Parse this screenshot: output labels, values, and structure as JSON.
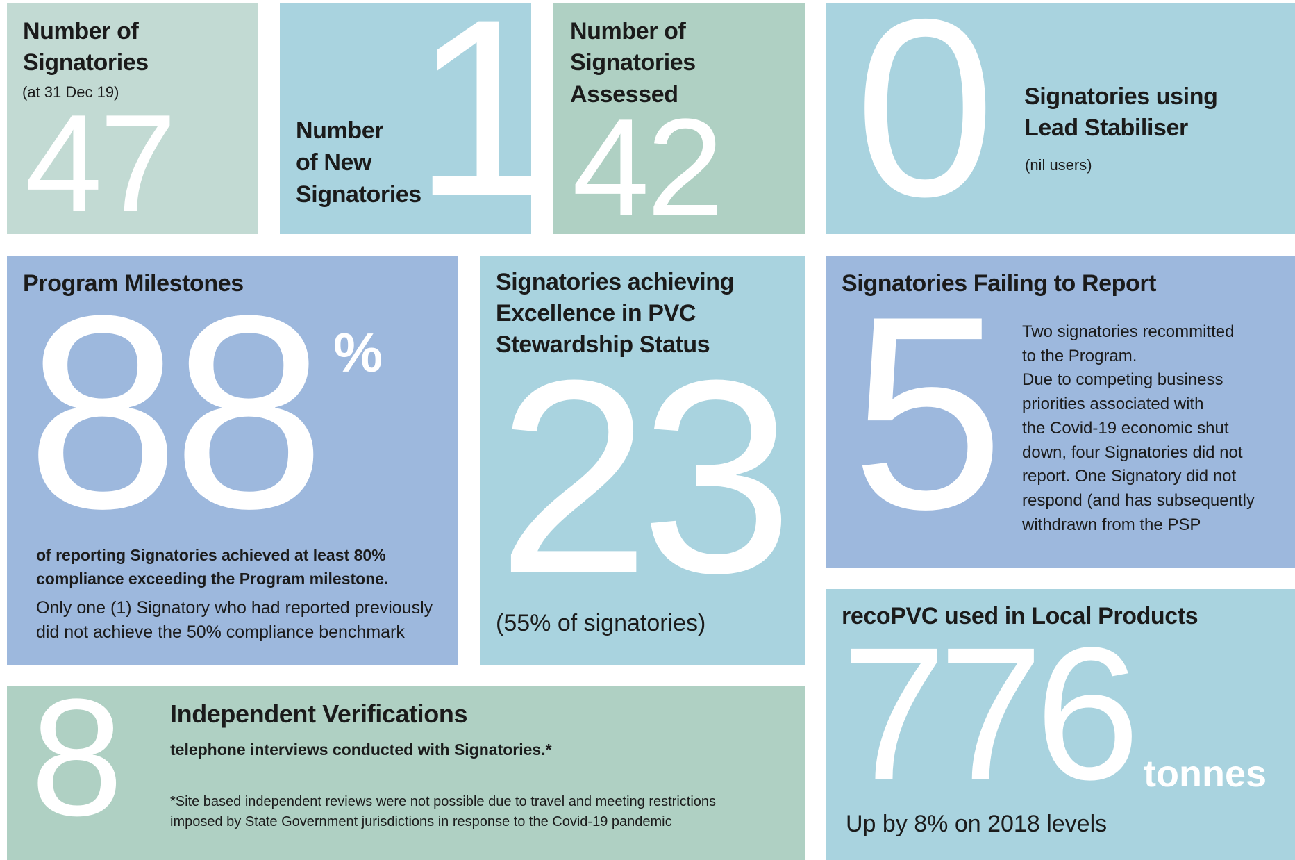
{
  "tiles": [
    {
      "title": [
        "Number of",
        "Signatories"
      ],
      "note": "(at 31 Dec 19)",
      "number": 47
    },
    {
      "title": [
        "Number",
        "of New",
        "Signatories"
      ],
      "number": 1
    },
    {
      "title": [
        "Number of",
        "Signatories",
        "Assessed"
      ],
      "number": 42
    },
    {
      "number": 0,
      "title": [
        "Signatories using",
        "Lead Stabiliser"
      ],
      "note": "(nil users)"
    },
    {
      "title": [
        "Program Milestones"
      ],
      "number": 88,
      "unit": "%",
      "highlight": [
        "of reporting Signatories achieved at least 80%",
        "compliance exceeding the Program milestone."
      ],
      "text": [
        "Only one (1) Signatory who had reported previously",
        "did not achieve the 50% compliance benchmark"
      ]
    },
    {
      "title": [
        "Signatories achieving",
        "Excellence in PVC",
        "Stewardship Status"
      ],
      "number": 23,
      "note": "(55% of signatories)"
    },
    {
      "title": [
        "Signatories Failing to Report"
      ],
      "number": 5,
      "text": [
        "Two signatories recommitted",
        "to the Program.",
        "Due to competing business",
        "priorities associated with",
        "the Covid-19 economic shut",
        "down, four Signatories did not",
        "report. One Signatory did not",
        "respond (and has subsequently",
        "withdrawn from the PSP"
      ]
    },
    {
      "title": [
        "recoPVC used in Local Products"
      ],
      "number": 776,
      "unit": "tonnes",
      "note": "Up by 8% on 2018 levels"
    },
    {
      "number": 8,
      "title": [
        "Independent Verifications"
      ],
      "highlight": [
        "telephone interviews conducted with Signatories.*"
      ],
      "text": [
        "*Site based independent reviews were not possible due to travel and meeting restrictions",
        "imposed by State Government jurisdictions in response to the Covid-19 pandemic"
      ]
    }
  ]
}
